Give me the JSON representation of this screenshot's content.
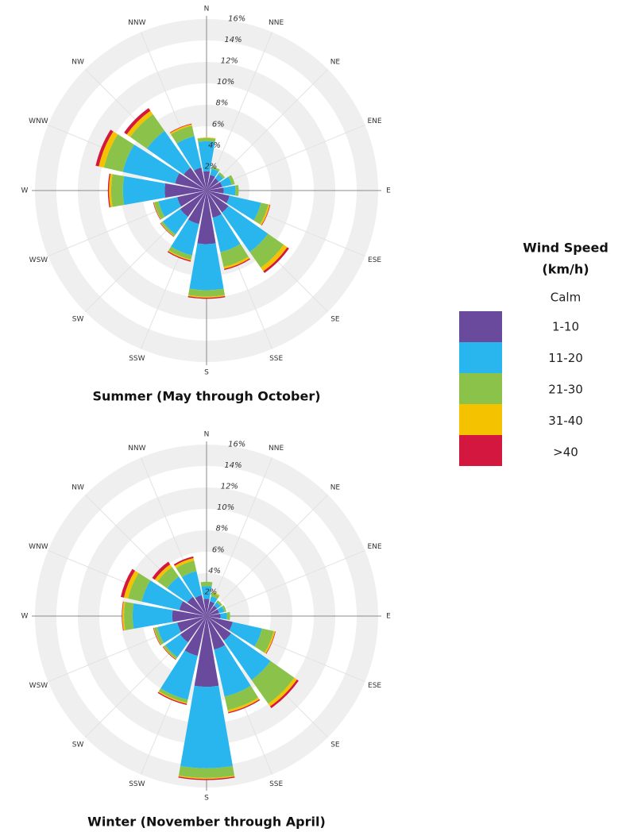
{
  "chart_data": [
    {
      "type": "rose",
      "title": "Summer (May through October)",
      "categories": [
        "N",
        "NNE",
        "NE",
        "ENE",
        "E",
        "ESE",
        "SE",
        "SSE",
        "S",
        "SSW",
        "SW",
        "WSW",
        "W",
        "WNW",
        "NW",
        "NNW"
      ],
      "ylim": [
        0,
        16
      ],
      "yticks": [
        {
          "value": 2,
          "label": "2%"
        },
        {
          "value": 4,
          "label": "4%"
        },
        {
          "value": 6,
          "label": "6%"
        },
        {
          "value": 8,
          "label": "8%"
        },
        {
          "value": 10,
          "label": "10%"
        },
        {
          "value": 12,
          "label": "12%"
        },
        {
          "value": 14,
          "label": "14%"
        },
        {
          "value": 16,
          "label": "16%"
        }
      ],
      "series": [
        {
          "name": "1-10",
          "color": "#6a4a9c",
          "values": [
            1.8,
            1.5,
            1.4,
            1.5,
            1.6,
            2.2,
            2.5,
            2.6,
            5.0,
            3.2,
            3.0,
            2.8,
            3.9,
            3.0,
            2.6,
            2.2
          ]
        },
        {
          "name": "11-20",
          "color": "#29b6ef",
          "values": [
            2.8,
            0.6,
            0.5,
            0.9,
            1.1,
            3.0,
            4.5,
            3.3,
            4.3,
            3.0,
            2.0,
            1.8,
            3.9,
            5.0,
            4.2,
            3.0
          ]
        },
        {
          "name": "21-30",
          "color": "#8bc34a",
          "values": [
            0.3,
            0.2,
            0.2,
            0.3,
            0.3,
            0.7,
            1.8,
            1.4,
            0.6,
            0.4,
            0.2,
            0.4,
            1.1,
            1.8,
            1.9,
            1.0
          ]
        },
        {
          "name": "31-40",
          "color": "#f5c200",
          "values": [
            0.05,
            0,
            0,
            0,
            0,
            0.15,
            0.4,
            0.2,
            0.1,
            0.1,
            0.05,
            0.05,
            0.2,
            0.5,
            0.4,
            0.15
          ]
        },
        {
          "name": ">40",
          "color": "#d4173f",
          "values": [
            0,
            0,
            0,
            0,
            0,
            0.05,
            0.2,
            0.1,
            0.1,
            0.1,
            0.05,
            0.05,
            0.1,
            0.3,
            0.3,
            0.05
          ]
        }
      ]
    },
    {
      "type": "rose",
      "title": "Winter (November through April)",
      "categories": [
        "N",
        "NNE",
        "NE",
        "ENE",
        "E",
        "ESE",
        "SE",
        "SSE",
        "S",
        "SSW",
        "SW",
        "WSW",
        "W",
        "WNW",
        "NW",
        "NNW"
      ],
      "ylim": [
        0,
        16
      ],
      "yticks": [
        {
          "value": 2,
          "label": "2%"
        },
        {
          "value": 4,
          "label": "4%"
        },
        {
          "value": 6,
          "label": "6%"
        },
        {
          "value": 8,
          "label": "8%"
        },
        {
          "value": 10,
          "label": "10%"
        },
        {
          "value": 12,
          "label": "12%"
        },
        {
          "value": 14,
          "label": "14%"
        },
        {
          "value": 16,
          "label": "16%"
        }
      ],
      "series": [
        {
          "name": "1-10",
          "color": "#6a4a9c",
          "values": [
            1.6,
            1.4,
            1.2,
            1.2,
            1.3,
            2.5,
            2.8,
            3.2,
            6.6,
            3.8,
            3.0,
            2.8,
            3.2,
            2.6,
            2.2,
            2.0
          ]
        },
        {
          "name": "11-20",
          "color": "#29b6ef",
          "values": [
            1.2,
            0.5,
            0.4,
            0.5,
            0.6,
            2.8,
            4.5,
            4.5,
            7.6,
            4.2,
            1.7,
            1.9,
            3.7,
            3.6,
            2.3,
            2.3
          ]
        },
        {
          "name": "21-30",
          "color": "#8bc34a",
          "values": [
            0.4,
            0.3,
            0.2,
            0.2,
            0.3,
            1.1,
            2.7,
            1.3,
            0.9,
            0.3,
            0.2,
            0.3,
            0.8,
            1.3,
            1.1,
            1.0
          ]
        },
        {
          "name": "31-40",
          "color": "#f5c200",
          "values": [
            0,
            0.1,
            0,
            0,
            0,
            0.15,
            0.3,
            0.2,
            0.1,
            0.1,
            0.05,
            0.05,
            0.15,
            0.4,
            0.3,
            0.25
          ]
        },
        {
          "name": ">40",
          "color": "#d4173f",
          "values": [
            0,
            0,
            0,
            0,
            0,
            0.05,
            0.2,
            0.1,
            0.1,
            0.1,
            0.05,
            0.05,
            0.05,
            0.3,
            0.3,
            0.15
          ]
        }
      ]
    }
  ],
  "legend": {
    "title": [
      "Wind Speed",
      "(km/h)"
    ],
    "calm_label": "Calm"
  }
}
